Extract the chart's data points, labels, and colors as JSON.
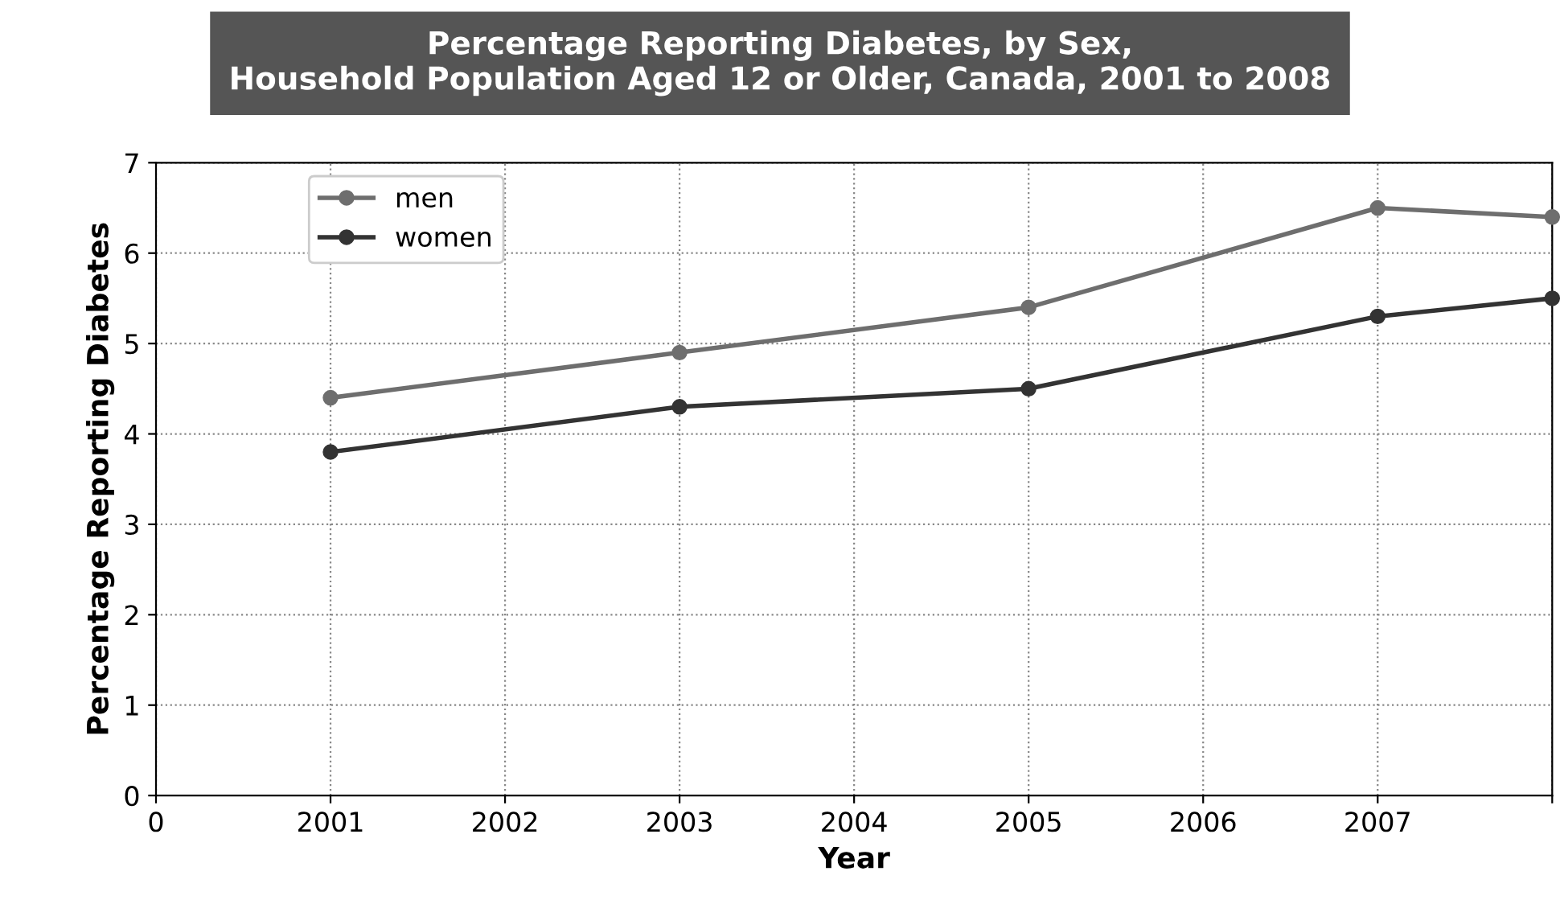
{
  "chart_data": {
    "type": "line",
    "title": "Percentage Reporting Diabetes, by Sex,\nHousehold Population Aged 12 or Older, Canada, 2001 to 2008",
    "xlabel": "Year",
    "ylabel": "Percentage Reporting Diabetes",
    "categories": [
      "0",
      "2001",
      "2002",
      "2003",
      "2004",
      "2005",
      "2006",
      "2007",
      null
    ],
    "series": [
      {
        "name": "men",
        "color": "#6e6e6e",
        "values": [
          null,
          4.4,
          null,
          4.9,
          null,
          5.4,
          null,
          6.5,
          6.4
        ]
      },
      {
        "name": "women",
        "color": "#333333",
        "values": [
          null,
          3.8,
          null,
          4.3,
          null,
          4.5,
          null,
          5.3,
          5.5
        ]
      }
    ],
    "ylim": [
      0,
      7
    ],
    "yticks": [
      0,
      1,
      2,
      3,
      4,
      5,
      6,
      7
    ],
    "grid": true,
    "legend": "top left",
    "marker": "circle",
    "line_style": "solid"
  }
}
